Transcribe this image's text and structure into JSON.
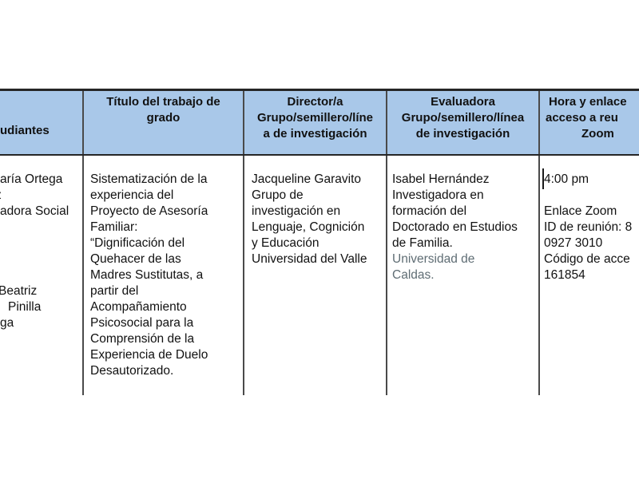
{
  "colors": {
    "header_fill": "#a9c8e9",
    "border_dark": "#262626",
    "border_vertical": "#4a4a4a",
    "muted_text": "#5f6d74"
  },
  "table": {
    "header": {
      "students_label": "udiantes",
      "title_lines": [
        "Título del trabajo de",
        "grado"
      ],
      "director_lines": [
        "Director/a",
        "Grupo/semillero/líne",
        "a de investigación"
      ],
      "evaluator_lines": [
        "Evaluadora",
        "Grupo/semillero/línea",
        "de investigación"
      ],
      "schedule_lines": [
        "Hora y enlace",
        "acceso a reu",
        "Zoom"
      ]
    },
    "row": {
      "students_lines": [
        "aría Ortega",
        "z",
        "adora Social",
        "",
        "",
        "",
        "",
        "Beatriz",
        "Pinilla",
        "ga"
      ],
      "title_lines": [
        "Sistematización de la",
        "experiencia del",
        "Proyecto de Asesoría",
        "Familiar:",
        "“Dignificación del",
        "Quehacer de las",
        "Madres Sustitutas, a",
        "partir del",
        "Acompañamiento",
        "Psicosocial para la",
        "Comprensión de la",
        "Experiencia de Duelo",
        "Desautorizado."
      ],
      "director_lines": [
        "Jacqueline Garavito",
        "Grupo de",
        "investigación en",
        "Lenguaje, Cognición",
        "y Educación",
        "Universidad del Valle"
      ],
      "evaluator_lines": [
        "Isabel Hernández",
        "Investigadora en",
        "formación del",
        "Doctorado en Estudios",
        "de Familia."
      ],
      "evaluator_university_lines": [
        "Universidad de",
        "Caldas."
      ],
      "schedule_lines": [
        "4:00 pm",
        "",
        "Enlace Zoom",
        "ID de reunión: 8",
        "0927 3010",
        "Código de acce",
        "161854"
      ]
    }
  }
}
